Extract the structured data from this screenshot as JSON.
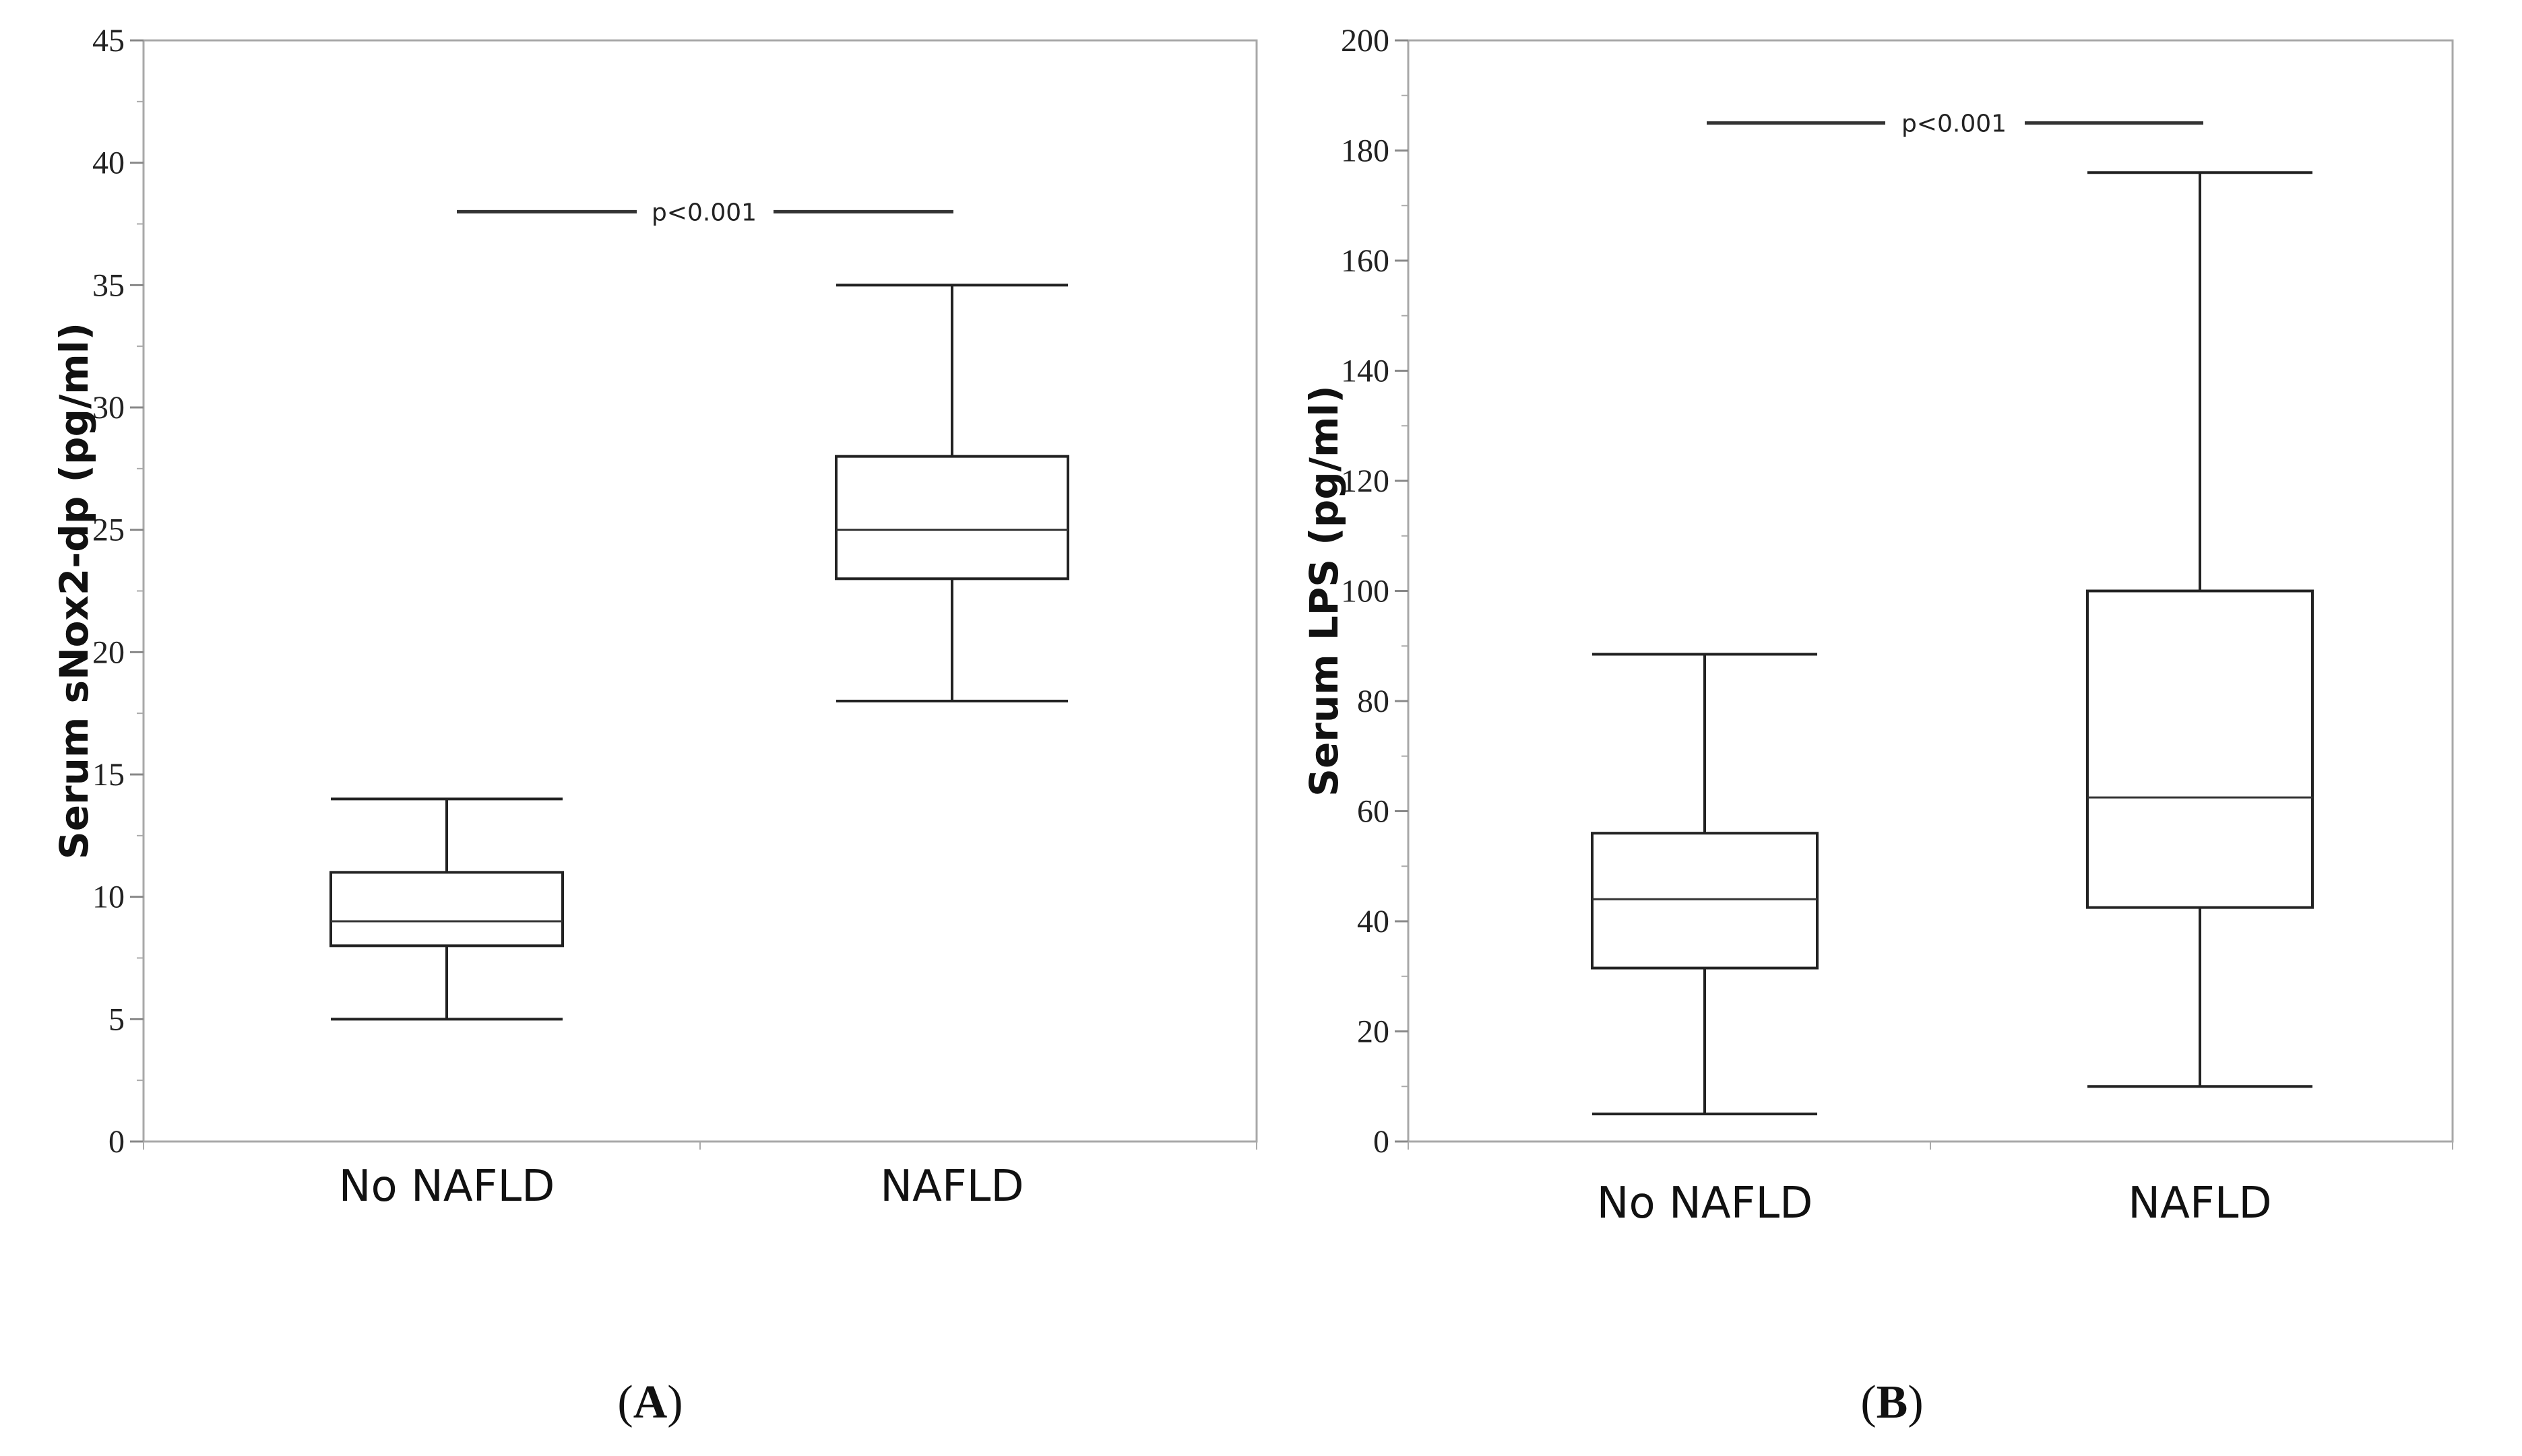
{
  "chart_data": [
    {
      "type": "box",
      "panel_label": "A",
      "ylabel": "Serum sNox2-dp (pg/ml)",
      "ylim": [
        0,
        45
      ],
      "yticks": [
        0,
        5,
        10,
        15,
        20,
        25,
        30,
        35,
        40,
        45
      ],
      "categories": [
        "No NAFLD",
        "NAFLD"
      ],
      "boxes": [
        {
          "category": "No NAFLD",
          "min": 5,
          "q1": 8,
          "median": 9,
          "q3": 11,
          "max": 14
        },
        {
          "category": "NAFLD",
          "min": 18,
          "q1": 23,
          "median": 25,
          "q3": 28,
          "max": 35
        }
      ],
      "significance": {
        "text": "p<0.001",
        "y": 38
      },
      "grid": false
    },
    {
      "type": "box",
      "panel_label": "B",
      "ylabel": "Serum LPS (pg/ml)",
      "ylim": [
        0,
        200
      ],
      "yticks": [
        0,
        20,
        40,
        60,
        80,
        100,
        120,
        140,
        160,
        180,
        200
      ],
      "categories": [
        "No NAFLD",
        "NAFLD"
      ],
      "boxes": [
        {
          "category": "No NAFLD",
          "min": 5,
          "q1": 31.5,
          "median": 44,
          "q3": 56,
          "max": 88.5
        },
        {
          "category": "NAFLD",
          "min": 10,
          "q1": 42.5,
          "median": 62.5,
          "q3": 100,
          "max": 176
        }
      ],
      "significance": {
        "text": "p<0.001",
        "y": 185
      },
      "grid": false
    }
  ]
}
